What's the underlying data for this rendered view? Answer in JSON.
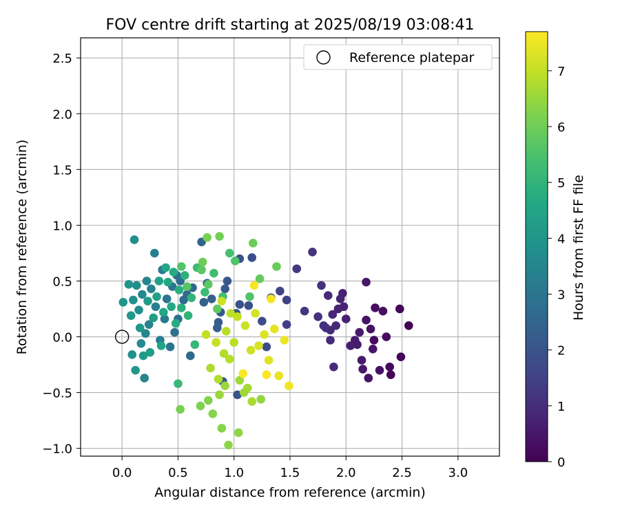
{
  "chart_data": {
    "type": "scatter",
    "title": "FOV centre drift starting at 2025/08/19 03:08:41",
    "xlabel": "Angular distance from reference (arcmin)",
    "ylabel": "Rotation from reference (arcmin)",
    "xlim": [
      -0.37,
      3.37
    ],
    "ylim": [
      -1.07,
      2.68
    ],
    "xticks": [
      0.0,
      0.5,
      1.0,
      1.5,
      2.0,
      2.5,
      3.0
    ],
    "xtick_labels": [
      "0.0",
      "0.5",
      "1.0",
      "1.5",
      "2.0",
      "2.5",
      "3.0"
    ],
    "yticks": [
      -1.0,
      -0.5,
      0.0,
      0.5,
      1.0,
      1.5,
      2.0,
      2.5
    ],
    "ytick_labels": [
      "−1.0",
      "−0.5",
      "0.0",
      "0.5",
      "1.0",
      "1.5",
      "2.0",
      "2.5"
    ],
    "grid": true,
    "legend": {
      "placement": "upper-right",
      "entries": [
        {
          "label": "Reference platepar",
          "marker": "open-circle",
          "color": "#000000"
        }
      ]
    },
    "reference": {
      "x": 0.0,
      "y": 0.0
    },
    "colorbar": {
      "label": "Hours from first FF file",
      "min": 0,
      "max": 7.7,
      "ticks": [
        0,
        1,
        2,
        3,
        4,
        5,
        6,
        7
      ],
      "tick_labels": [
        "0",
        "1",
        "2",
        "3",
        "4",
        "5",
        "6",
        "7"
      ],
      "colormap": "viridis"
    },
    "points": [
      {
        "x": 2.56,
        "y": 0.1,
        "c": 0.05
      },
      {
        "x": 2.48,
        "y": 0.25,
        "c": 0.1
      },
      {
        "x": 2.49,
        "y": -0.18,
        "c": 0.15
      },
      {
        "x": 2.4,
        "y": -0.34,
        "c": 0.1
      },
      {
        "x": 2.39,
        "y": -0.27,
        "c": 0.2
      },
      {
        "x": 2.36,
        "y": -0.0,
        "c": 0.25
      },
      {
        "x": 2.33,
        "y": 0.23,
        "c": 0.3
      },
      {
        "x": 2.3,
        "y": -0.3,
        "c": 0.35
      },
      {
        "x": 2.26,
        "y": 0.26,
        "c": 0.3
      },
      {
        "x": 2.25,
        "y": -0.03,
        "c": 0.2
      },
      {
        "x": 2.22,
        "y": 0.07,
        "c": 0.35
      },
      {
        "x": 2.2,
        "y": -0.37,
        "c": 0.4
      },
      {
        "x": 2.24,
        "y": -0.11,
        "c": 0.45
      },
      {
        "x": 2.18,
        "y": 0.15,
        "c": 0.4
      },
      {
        "x": 2.18,
        "y": 0.49,
        "c": 0.5
      },
      {
        "x": 2.15,
        "y": -0.29,
        "c": 0.5
      },
      {
        "x": 2.14,
        "y": -0.21,
        "c": 0.55
      },
      {
        "x": 2.12,
        "y": 0.04,
        "c": 0.55
      },
      {
        "x": 2.1,
        "y": -0.07,
        "c": 0.6
      },
      {
        "x": 2.08,
        "y": -0.03,
        "c": 0.6
      },
      {
        "x": 2.04,
        "y": -0.08,
        "c": 0.65
      },
      {
        "x": 2.0,
        "y": 0.16,
        "c": 0.7
      },
      {
        "x": 1.97,
        "y": 0.39,
        "c": 0.7
      },
      {
        "x": 1.98,
        "y": 0.27,
        "c": 0.75
      },
      {
        "x": 1.95,
        "y": 0.34,
        "c": 0.8
      },
      {
        "x": 1.93,
        "y": 0.25,
        "c": 0.75
      },
      {
        "x": 1.91,
        "y": 0.1,
        "c": 0.85
      },
      {
        "x": 1.89,
        "y": -0.27,
        "c": 0.9
      },
      {
        "x": 1.88,
        "y": 0.2,
        "c": 0.85
      },
      {
        "x": 1.86,
        "y": 0.06,
        "c": 0.9
      },
      {
        "x": 1.86,
        "y": -0.03,
        "c": 0.95
      },
      {
        "x": 1.84,
        "y": 0.37,
        "c": 0.95
      },
      {
        "x": 1.82,
        "y": 0.08,
        "c": 1.0
      },
      {
        "x": 1.8,
        "y": 0.1,
        "c": 1.05
      },
      {
        "x": 1.78,
        "y": 0.46,
        "c": 1.05
      },
      {
        "x": 1.75,
        "y": 0.18,
        "c": 1.1
      },
      {
        "x": 1.7,
        "y": 0.76,
        "c": 1.15
      },
      {
        "x": 1.63,
        "y": 0.23,
        "c": 1.2
      },
      {
        "x": 1.56,
        "y": 0.61,
        "c": 1.25
      },
      {
        "x": 1.47,
        "y": 0.11,
        "c": 1.4
      },
      {
        "x": 1.47,
        "y": 0.33,
        "c": 1.5
      },
      {
        "x": 1.41,
        "y": 0.41,
        "c": 1.55
      },
      {
        "x": 1.33,
        "y": 0.35,
        "c": 1.7
      },
      {
        "x": 1.29,
        "y": -0.09,
        "c": 1.75
      },
      {
        "x": 1.25,
        "y": 0.14,
        "c": 1.8
      },
      {
        "x": 1.16,
        "y": 0.71,
        "c": 1.8
      },
      {
        "x": 1.13,
        "y": 0.28,
        "c": 1.9
      },
      {
        "x": 1.05,
        "y": 0.7,
        "c": 1.9
      },
      {
        "x": 1.05,
        "y": 0.29,
        "c": 2.0
      },
      {
        "x": 1.03,
        "y": -0.52,
        "c": 2.0
      },
      {
        "x": 1.02,
        "y": 0.21,
        "c": 2.05
      },
      {
        "x": 0.94,
        "y": 0.5,
        "c": 2.1
      },
      {
        "x": 0.92,
        "y": 0.43,
        "c": 2.15
      },
      {
        "x": 0.9,
        "y": -0.4,
        "c": 2.2
      },
      {
        "x": 0.88,
        "y": 0.22,
        "c": 2.2
      },
      {
        "x": 0.86,
        "y": 0.13,
        "c": 2.25
      },
      {
        "x": 0.85,
        "y": 0.08,
        "c": 2.3
      },
      {
        "x": 0.8,
        "y": 0.34,
        "c": 2.3
      },
      {
        "x": 0.76,
        "y": 0.48,
        "c": 2.35
      },
      {
        "x": 0.73,
        "y": 0.31,
        "c": 2.4
      },
      {
        "x": 0.71,
        "y": 0.85,
        "c": 2.5
      },
      {
        "x": 0.63,
        "y": 0.44,
        "c": 2.55
      },
      {
        "x": 0.61,
        "y": -0.17,
        "c": 2.6
      },
      {
        "x": 0.58,
        "y": 0.38,
        "c": 2.65
      },
      {
        "x": 0.55,
        "y": 0.33,
        "c": 2.7
      },
      {
        "x": 0.52,
        "y": 0.5,
        "c": 2.75
      },
      {
        "x": 0.5,
        "y": 0.16,
        "c": 2.8
      },
      {
        "x": 0.49,
        "y": 0.55,
        "c": 2.85
      },
      {
        "x": 0.47,
        "y": 0.04,
        "c": 2.9
      },
      {
        "x": 0.45,
        "y": 0.45,
        "c": 2.95
      },
      {
        "x": 0.43,
        "y": -0.09,
        "c": 3.0
      },
      {
        "x": 0.4,
        "y": 0.34,
        "c": 3.05
      },
      {
        "x": 0.38,
        "y": 0.16,
        "c": 3.1
      },
      {
        "x": 0.36,
        "y": 0.6,
        "c": 3.15
      },
      {
        "x": 0.34,
        "y": -0.03,
        "c": 3.2
      },
      {
        "x": 0.3,
        "y": 0.27,
        "c": 3.25
      },
      {
        "x": 0.29,
        "y": 0.75,
        "c": 3.3
      },
      {
        "x": 0.26,
        "y": 0.43,
        "c": 3.35
      },
      {
        "x": 0.24,
        "y": 0.11,
        "c": 3.4
      },
      {
        "x": 0.22,
        "y": 0.5,
        "c": 3.45
      },
      {
        "x": 0.21,
        "y": 0.03,
        "c": 3.5
      },
      {
        "x": 0.2,
        "y": -0.37,
        "c": 3.55
      },
      {
        "x": 0.18,
        "y": 0.38,
        "c": 3.6
      },
      {
        "x": 0.17,
        "y": -0.06,
        "c": 3.65
      },
      {
        "x": 0.15,
        "y": 0.24,
        "c": 3.7
      },
      {
        "x": 0.13,
        "y": 0.46,
        "c": 3.75
      },
      {
        "x": 0.11,
        "y": 0.87,
        "c": 3.8
      },
      {
        "x": 0.1,
        "y": 0.33,
        "c": 3.85
      },
      {
        "x": 0.09,
        "y": -0.16,
        "c": 3.9
      },
      {
        "x": 0.06,
        "y": 0.47,
        "c": 3.95
      },
      {
        "x": 0.01,
        "y": 0.31,
        "c": 4.0
      },
      {
        "x": 0.08,
        "y": 0.19,
        "c": 4.05
      },
      {
        "x": 0.12,
        "y": -0.3,
        "c": 4.1
      },
      {
        "x": 0.16,
        "y": 0.08,
        "c": 4.1
      },
      {
        "x": 0.19,
        "y": -0.17,
        "c": 4.15
      },
      {
        "x": 0.23,
        "y": 0.32,
        "c": 4.2
      },
      {
        "x": 0.25,
        "y": -0.14,
        "c": 4.25
      },
      {
        "x": 0.28,
        "y": 0.17,
        "c": 4.3
      },
      {
        "x": 0.31,
        "y": 0.36,
        "c": 4.35
      },
      {
        "x": 0.33,
        "y": 0.5,
        "c": 4.4
      },
      {
        "x": 0.35,
        "y": -0.08,
        "c": 4.45
      },
      {
        "x": 0.37,
        "y": 0.22,
        "c": 4.5
      },
      {
        "x": 0.39,
        "y": 0.62,
        "c": 4.55
      },
      {
        "x": 0.41,
        "y": 0.49,
        "c": 4.6
      },
      {
        "x": 0.44,
        "y": 0.27,
        "c": 4.65
      },
      {
        "x": 0.46,
        "y": 0.58,
        "c": 4.7
      },
      {
        "x": 0.48,
        "y": 0.12,
        "c": 4.75
      },
      {
        "x": 0.51,
        "y": 0.42,
        "c": 4.8
      },
      {
        "x": 0.53,
        "y": 0.26,
        "c": 4.85
      },
      {
        "x": 0.56,
        "y": 0.55,
        "c": 4.9
      },
      {
        "x": 0.59,
        "y": 0.19,
        "c": 4.95
      },
      {
        "x": 0.62,
        "y": 0.35,
        "c": 5.0
      },
      {
        "x": 0.65,
        "y": -0.07,
        "c": 5.1
      },
      {
        "x": 0.5,
        "y": -0.42,
        "c": 5.15
      },
      {
        "x": 0.67,
        "y": 0.62,
        "c": 5.2
      },
      {
        "x": 0.74,
        "y": 0.4,
        "c": 5.25
      },
      {
        "x": 0.82,
        "y": 0.57,
        "c": 5.3
      },
      {
        "x": 0.9,
        "y": 0.36,
        "c": 5.35
      },
      {
        "x": 0.96,
        "y": 0.75,
        "c": 5.4
      },
      {
        "x": 1.01,
        "y": 0.68,
        "c": 5.5
      },
      {
        "x": 1.14,
        "y": 0.36,
        "c": 5.55
      },
      {
        "x": 0.53,
        "y": 0.63,
        "c": 5.6
      },
      {
        "x": 0.58,
        "y": 0.45,
        "c": 5.65
      },
      {
        "x": 0.71,
        "y": 0.6,
        "c": 5.7
      },
      {
        "x": 0.77,
        "y": 0.47,
        "c": 5.75
      },
      {
        "x": 0.85,
        "y": 0.25,
        "c": 5.8
      },
      {
        "x": 1.23,
        "y": 0.52,
        "c": 5.85
      },
      {
        "x": 1.38,
        "y": 0.63,
        "c": 5.9
      },
      {
        "x": 1.17,
        "y": 0.84,
        "c": 5.95
      },
      {
        "x": 0.72,
        "y": 0.67,
        "c": 6.0
      },
      {
        "x": 0.87,
        "y": 0.9,
        "c": 6.05
      },
      {
        "x": 0.76,
        "y": 0.89,
        "c": 6.1
      },
      {
        "x": 0.52,
        "y": -0.65,
        "c": 6.15
      },
      {
        "x": 0.7,
        "y": -0.62,
        "c": 6.2
      },
      {
        "x": 0.77,
        "y": -0.57,
        "c": 6.25
      },
      {
        "x": 0.81,
        "y": -0.69,
        "c": 6.3
      },
      {
        "x": 0.89,
        "y": -0.82,
        "c": 6.3
      },
      {
        "x": 0.95,
        "y": -0.97,
        "c": 6.35
      },
      {
        "x": 1.04,
        "y": -0.86,
        "c": 6.4
      },
      {
        "x": 1.24,
        "y": -0.56,
        "c": 6.45
      },
      {
        "x": 0.87,
        "y": -0.52,
        "c": 6.5
      },
      {
        "x": 0.92,
        "y": -0.44,
        "c": 6.55
      },
      {
        "x": 1.05,
        "y": -0.39,
        "c": 6.6
      },
      {
        "x": 1.09,
        "y": -0.5,
        "c": 6.6
      },
      {
        "x": 1.12,
        "y": -0.46,
        "c": 6.65
      },
      {
        "x": 1.16,
        "y": -0.58,
        "c": 6.7
      },
      {
        "x": 0.79,
        "y": -0.28,
        "c": 6.75
      },
      {
        "x": 0.86,
        "y": -0.38,
        "c": 6.8
      },
      {
        "x": 0.91,
        "y": -0.15,
        "c": 6.8
      },
      {
        "x": 0.96,
        "y": -0.2,
        "c": 6.85
      },
      {
        "x": 1.0,
        "y": -0.05,
        "c": 6.9
      },
      {
        "x": 0.93,
        "y": 0.05,
        "c": 6.9
      },
      {
        "x": 0.97,
        "y": 0.21,
        "c": 6.95
      },
      {
        "x": 1.03,
        "y": 0.18,
        "c": 7.0
      },
      {
        "x": 0.75,
        "y": 0.02,
        "c": 7.0
      },
      {
        "x": 0.84,
        "y": -0.05,
        "c": 7.05
      },
      {
        "x": 0.89,
        "y": 0.32,
        "c": 7.1
      },
      {
        "x": 1.1,
        "y": 0.1,
        "c": 7.1
      },
      {
        "x": 1.15,
        "y": -0.12,
        "c": 7.15
      },
      {
        "x": 1.19,
        "y": 0.21,
        "c": 7.2
      },
      {
        "x": 1.22,
        "y": -0.08,
        "c": 7.25
      },
      {
        "x": 1.27,
        "y": 0.02,
        "c": 7.3
      },
      {
        "x": 1.31,
        "y": -0.21,
        "c": 7.35
      },
      {
        "x": 1.36,
        "y": 0.07,
        "c": 7.4
      },
      {
        "x": 1.4,
        "y": -0.35,
        "c": 7.45
      },
      {
        "x": 1.45,
        "y": -0.03,
        "c": 7.5
      },
      {
        "x": 1.49,
        "y": -0.44,
        "c": 7.55
      },
      {
        "x": 1.33,
        "y": 0.34,
        "c": 7.6
      },
      {
        "x": 1.18,
        "y": 0.46,
        "c": 7.6
      },
      {
        "x": 1.29,
        "y": -0.34,
        "c": 7.65
      },
      {
        "x": 1.08,
        "y": -0.33,
        "c": 7.65
      }
    ]
  }
}
